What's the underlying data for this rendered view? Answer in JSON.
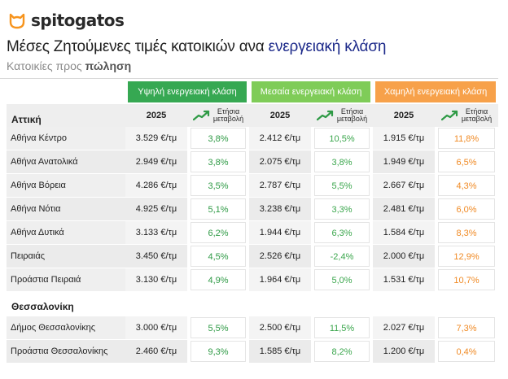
{
  "brand": {
    "name": "spitogatos",
    "color": "#f7941d"
  },
  "title_main": "Μέσες Ζητούμενες τιμές κατοικιών ανα ",
  "title_accent": "ενεργειακή κλάση",
  "subtitle_prefix": "Κατοικίες προς ",
  "subtitle_bold": "πώληση",
  "classes": [
    {
      "label": "Υψηλή ενεργειακή κλάση",
      "color": "#36a852"
    },
    {
      "label": "Μεσαία ενεργειακή κλάση",
      "color": "#7fcc58"
    },
    {
      "label": "Χαμηλή ενεργειακή κλάση",
      "color": "#f7a14a"
    }
  ],
  "col_year": "2025",
  "col_change": "Ετήσια μεταβολή",
  "col_change_l1": "Ετήσια",
  "col_change_l2": "μεταβολή",
  "sections": [
    {
      "name": "Αττική",
      "rows": [
        {
          "area": "Αθήνα Κέντρο",
          "high_price": "3.529 €/τμ",
          "high_chg": "3,8%",
          "mid_price": "2.412 €/τμ",
          "mid_chg": "10,5%",
          "low_price": "1.915 €/τμ",
          "low_chg": "11,8%"
        },
        {
          "area": "Αθήνα Ανατολικά",
          "high_price": "2.949 €/τμ",
          "high_chg": "3,8%",
          "mid_price": "2.075 €/τμ",
          "mid_chg": "3,8%",
          "low_price": "1.949 €/τμ",
          "low_chg": "6,5%"
        },
        {
          "area": "Αθήνα Βόρεια",
          "high_price": "4.286 €/τμ",
          "high_chg": "3,5%",
          "mid_price": "2.787 €/τμ",
          "mid_chg": "5,5%",
          "low_price": "2.667 €/τμ",
          "low_chg": "4,3%"
        },
        {
          "area": "Αθήνα Νότια",
          "high_price": "4.925 €/τμ",
          "high_chg": "5,1%",
          "mid_price": "3.238 €/τμ",
          "mid_chg": "3,3%",
          "low_price": "2.481 €/τμ",
          "low_chg": "6,0%"
        },
        {
          "area": "Αθήνα Δυτικά",
          "high_price": "3.133 €/τμ",
          "high_chg": "6,2%",
          "mid_price": "1.944 €/τμ",
          "mid_chg": "6,3%",
          "low_price": "1.584 €/τμ",
          "low_chg": "8,3%"
        },
        {
          "area": "Πειραιάς",
          "high_price": "3.450 €/τμ",
          "high_chg": "4,5%",
          "mid_price": "2.526 €/τμ",
          "mid_chg": "-2,4%",
          "low_price": "2.000 €/τμ",
          "low_chg": "12,9%"
        },
        {
          "area": "Προάστια Πειραιά",
          "high_price": "3.130 €/τμ",
          "high_chg": "4,9%",
          "mid_price": "1.964 €/τμ",
          "mid_chg": "5,0%",
          "low_price": "1.531 €/τμ",
          "low_chg": "10,7%"
        }
      ]
    },
    {
      "name": "Θεσσαλονίκη",
      "rows": [
        {
          "area": "Δήμος Θεσσαλονίκης",
          "high_price": "3.000 €/τμ",
          "high_chg": "5,5%",
          "mid_price": "2.500 €/τμ",
          "mid_chg": "11,5%",
          "low_price": "2.027 €/τμ",
          "low_chg": "7,3%"
        },
        {
          "area": "Προάστια Θεσσαλονίκης",
          "high_price": "2.460 €/τμ",
          "high_chg": "9,3%",
          "mid_price": "1.585 €/τμ",
          "mid_chg": "8,2%",
          "low_price": "1.200 €/τμ",
          "low_chg": "0,4%"
        }
      ]
    }
  ]
}
